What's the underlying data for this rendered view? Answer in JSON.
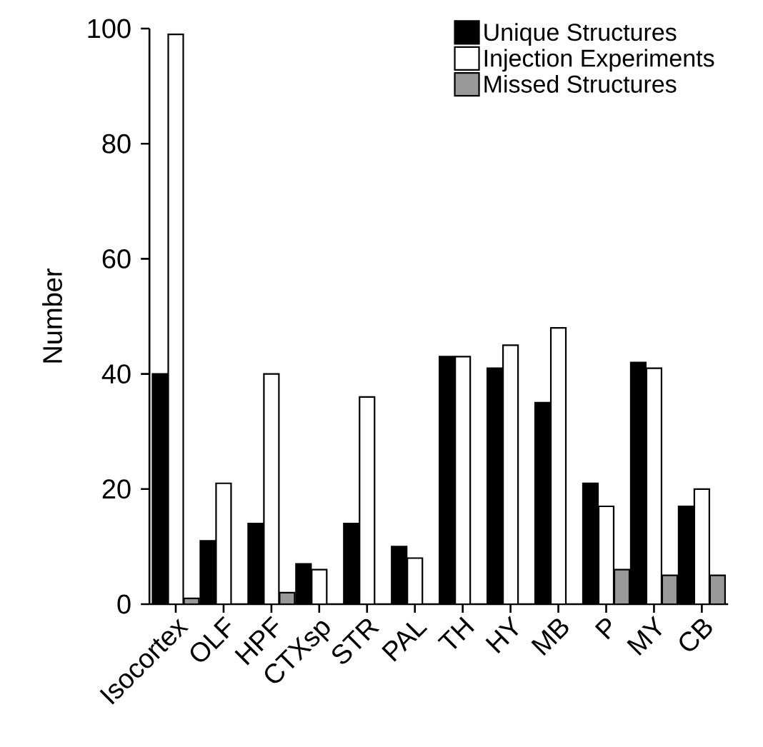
{
  "chart_data": {
    "type": "bar",
    "ylabel": "Number",
    "categories": [
      "Isocortex",
      "OLF",
      "HPF",
      "CTXsp",
      "STR",
      "PAL",
      "TH",
      "HY",
      "MB",
      "P",
      "MY",
      "CB"
    ],
    "series": [
      {
        "name": "Unique Structures",
        "color": "#000000",
        "values": [
          40,
          11,
          14,
          7,
          14,
          10,
          43,
          41,
          35,
          21,
          42,
          17
        ]
      },
      {
        "name": "Injection Experiments",
        "color": "#ffffff",
        "values": [
          99,
          21,
          40,
          6,
          36,
          8,
          43,
          45,
          48,
          17,
          41,
          20
        ]
      },
      {
        "name": "Missed Structures",
        "color": "#999999",
        "values": [
          1,
          null,
          2,
          null,
          null,
          null,
          null,
          null,
          null,
          6,
          5,
          5
        ]
      }
    ],
    "ylim": [
      0,
      100
    ],
    "yticks": [
      0,
      20,
      40,
      60,
      80,
      100
    ],
    "legend": "top right",
    "grid": false
  }
}
